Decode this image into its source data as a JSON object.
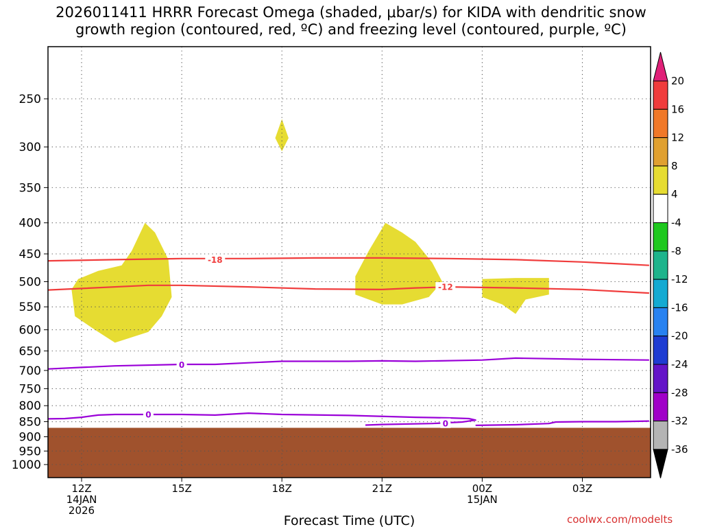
{
  "title": {
    "line1": "2026011411 HRRR Forecast Omega (shaded, μbar/s) for KIDA with dendritic snow",
    "line2": "growth region (contoured, red, ºC) and freezing level (contoured, purple, ºC)"
  },
  "credit": "coolwx.com/modelts",
  "chart_data": {
    "type": "time-height cross section",
    "title": "2026011411 HRRR Forecast Omega (shaded, μbar/s) for KIDA with dendritic snow growth region (contoured, red, ºC) and freezing level (contoured, purple, ºC)",
    "xlabel": "Forecast Time (UTC)",
    "ylabel": "",
    "x_hours_range": [
      11,
      29
    ],
    "y_pressure_range_mb": [
      1050,
      200
    ],
    "y_ticks": [
      250,
      300,
      350,
      400,
      450,
      500,
      550,
      600,
      650,
      700,
      750,
      800,
      850,
      900,
      950,
      1000
    ],
    "x_ticks": [
      {
        "hour": 12,
        "labels": [
          "12Z",
          "14JAN",
          "2026"
        ]
      },
      {
        "hour": 15,
        "labels": [
          "15Z"
        ]
      },
      {
        "hour": 18,
        "labels": [
          "18Z"
        ]
      },
      {
        "hour": 21,
        "labels": [
          "21Z"
        ]
      },
      {
        "hour": 24,
        "labels": [
          "00Z",
          "15JAN"
        ]
      },
      {
        "hour": 27,
        "labels": [
          "03Z"
        ]
      }
    ],
    "ground_pressure_mb": 870,
    "ground_color": "#a0522d",
    "omega_shading": {
      "fill_color": "#e6dc32",
      "bin": "4 to 8",
      "regions": [
        {
          "name": "omega-region-1",
          "points": [
            [
              11.7,
              515
            ],
            [
              11.9,
              495
            ],
            [
              12.5,
              480
            ],
            [
              13.2,
              470
            ],
            [
              13.5,
              445
            ],
            [
              13.9,
              400
            ],
            [
              14.2,
              415
            ],
            [
              14.6,
              460
            ],
            [
              14.7,
              530
            ],
            [
              14.4,
              570
            ],
            [
              14.0,
              605
            ],
            [
              13.0,
              630
            ],
            [
              12.4,
              600
            ],
            [
              11.8,
              570
            ]
          ]
        },
        {
          "name": "omega-region-2",
          "points": [
            [
              17.8,
              290
            ],
            [
              18.0,
              270
            ],
            [
              18.2,
              290
            ],
            [
              18.0,
              305
            ]
          ]
        },
        {
          "name": "omega-region-3",
          "points": [
            [
              20.2,
              490
            ],
            [
              20.6,
              445
            ],
            [
              21.1,
              400
            ],
            [
              21.6,
              415
            ],
            [
              22.0,
              430
            ],
            [
              22.5,
              465
            ],
            [
              22.8,
              500
            ],
            [
              22.4,
              530
            ],
            [
              21.6,
              545
            ],
            [
              21.0,
              545
            ],
            [
              20.2,
              525
            ]
          ]
        },
        {
          "name": "omega-region-4",
          "points": [
            [
              24.0,
              495
            ],
            [
              25.0,
              493
            ],
            [
              26.0,
              493
            ],
            [
              26.0,
              525
            ],
            [
              25.3,
              535
            ],
            [
              25.0,
              565
            ],
            [
              24.6,
              545
            ],
            [
              24.0,
              530
            ]
          ]
        }
      ]
    },
    "contours": [
      {
        "name": "dgz-contour-minus18",
        "color": "#f03c3c",
        "label": "-18",
        "label_at": [
          16.0,
          460
        ],
        "points": [
          [
            11,
            462
          ],
          [
            13,
            460
          ],
          [
            15,
            458
          ],
          [
            17,
            458
          ],
          [
            19,
            457
          ],
          [
            21,
            457
          ],
          [
            23,
            458
          ],
          [
            25,
            460
          ],
          [
            27,
            464
          ],
          [
            29,
            470
          ]
        ]
      },
      {
        "name": "dgz-contour-minus12",
        "color": "#f03c3c",
        "label": "-12",
        "label_at": [
          22.9,
          510
        ],
        "points": [
          [
            11,
            516
          ],
          [
            12,
            513
          ],
          [
            14,
            507
          ],
          [
            15,
            507
          ],
          [
            17,
            510
          ],
          [
            19,
            514
          ],
          [
            21,
            515
          ],
          [
            22,
            512
          ],
          [
            23,
            510
          ],
          [
            25,
            512
          ],
          [
            27,
            515
          ],
          [
            29,
            522
          ]
        ]
      },
      {
        "name": "freezing-level-upper",
        "color": "#9a00d8",
        "label": "0",
        "label_at": [
          15.0,
          685
        ],
        "points": [
          [
            11,
            696
          ],
          [
            12,
            692
          ],
          [
            13,
            688
          ],
          [
            15,
            684
          ],
          [
            16,
            684
          ],
          [
            17,
            680
          ],
          [
            18,
            676
          ],
          [
            20,
            676
          ],
          [
            21,
            675
          ],
          [
            22,
            676
          ],
          [
            24,
            673
          ],
          [
            25,
            668
          ],
          [
            27,
            671
          ],
          [
            29,
            673
          ]
        ]
      },
      {
        "name": "freezing-level-lower",
        "color": "#9a00d8",
        "label": "0",
        "label_at": [
          14.0,
          827
        ],
        "points": [
          [
            11,
            841
          ],
          [
            11.5,
            840
          ],
          [
            12,
            836
          ],
          [
            12.5,
            829
          ],
          [
            13,
            827
          ],
          [
            15,
            827
          ],
          [
            16,
            829
          ],
          [
            17,
            823
          ],
          [
            18,
            827
          ],
          [
            20,
            830
          ],
          [
            22,
            836
          ],
          [
            23,
            838
          ],
          [
            23.6,
            840
          ],
          [
            23.8,
            845
          ],
          [
            23.4,
            851
          ],
          [
            22.5,
            856
          ],
          [
            21.0,
            859
          ],
          [
            20.5,
            861
          ]
        ]
      },
      {
        "name": "freezing-level-lower-east",
        "color": "#9a00d8",
        "label": "0",
        "label_at": [
          22.9,
          855
        ],
        "points": [
          [
            23.8,
            862
          ],
          [
            25,
            860
          ],
          [
            26,
            856
          ],
          [
            26.2,
            851
          ],
          [
            27,
            850
          ],
          [
            28,
            850
          ],
          [
            29,
            848
          ]
        ]
      }
    ],
    "colorbar": {
      "labels": [
        "20",
        "16",
        "12",
        "8",
        "4",
        "-4",
        "-8",
        "-12",
        "-16",
        "-20",
        "-24",
        "-28",
        "-32",
        "-36"
      ],
      "colors": [
        "#e02078",
        "#f03c3c",
        "#f07828",
        "#e0a030",
        "#e6dc32",
        "#ffffff",
        "#1ec81e",
        "#1eb48c",
        "#14aad2",
        "#2882f0",
        "#1e3cd2",
        "#6414c8",
        "#a000c8",
        "#b4b4b4",
        "#000000"
      ]
    }
  }
}
